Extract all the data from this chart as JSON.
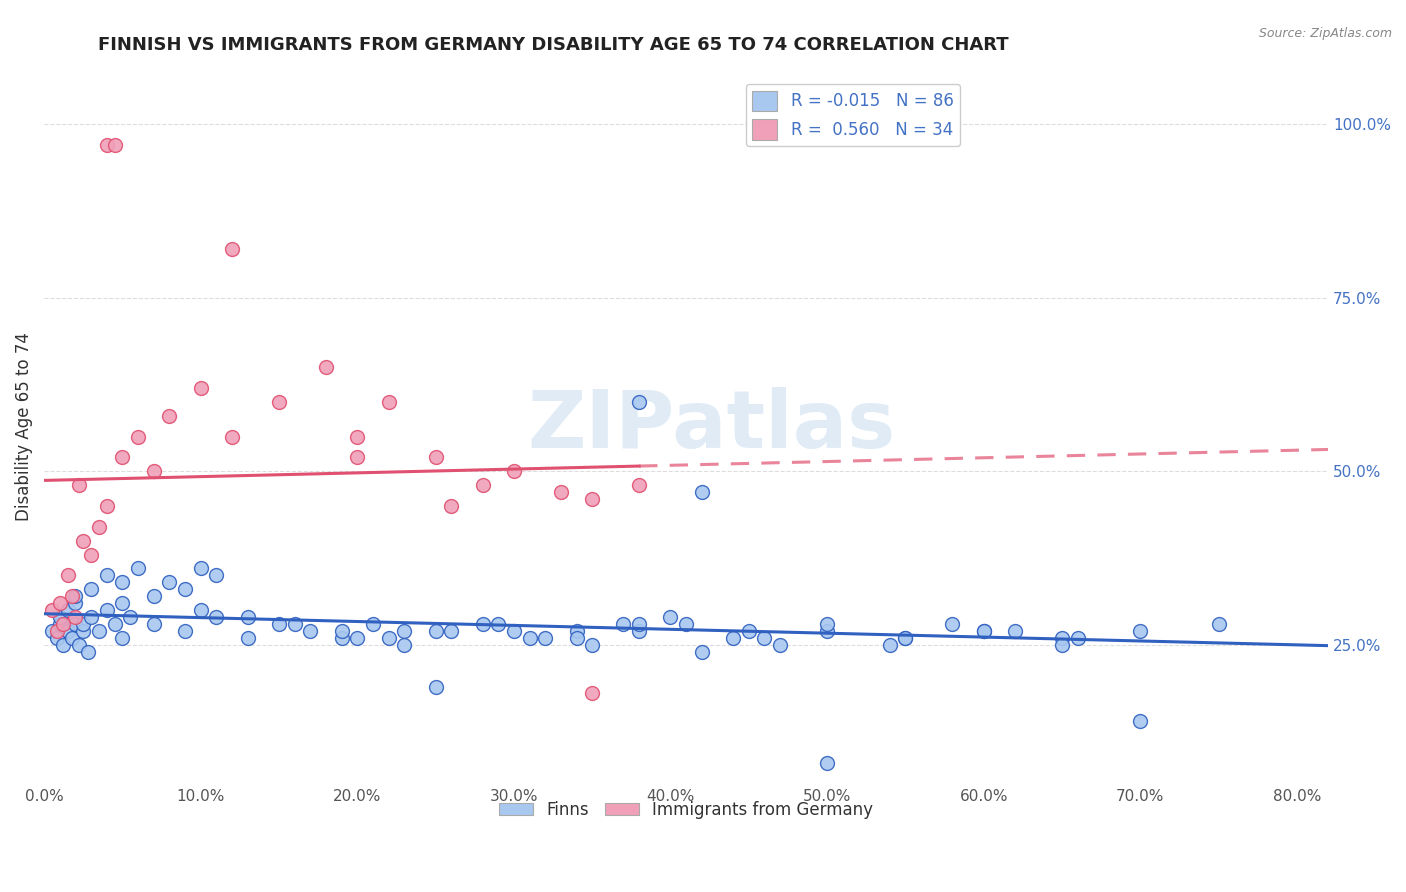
{
  "title": "FINNISH VS IMMIGRANTS FROM GERMANY DISABILITY AGE 65 TO 74 CORRELATION CHART",
  "source": "Source: ZipAtlas.com",
  "ylabel": "Disability Age 65 to 74",
  "xlim": [
    0.0,
    0.82
  ],
  "ylim": [
    0.05,
    1.08
  ],
  "R_finns": -0.015,
  "N_finns": 86,
  "R_germany": 0.56,
  "N_germany": 34,
  "color_finns": "#A8C8F0",
  "color_germany": "#F0A0B8",
  "color_finns_line": "#3060C0",
  "color_germany_line": "#E05070",
  "watermark": "ZIPatlas",
  "watermark_color": "#C8DCF0",
  "finns_x": [
    0.005,
    0.008,
    0.01,
    0.012,
    0.015,
    0.018,
    0.02,
    0.022,
    0.025,
    0.028,
    0.01,
    0.015,
    0.02,
    0.025,
    0.03,
    0.035,
    0.04,
    0.045,
    0.05,
    0.055,
    0.02,
    0.03,
    0.04,
    0.05,
    0.06,
    0.07,
    0.08,
    0.09,
    0.1,
    0.11,
    0.05,
    0.07,
    0.09,
    0.11,
    0.13,
    0.15,
    0.17,
    0.19,
    0.21,
    0.23,
    0.1,
    0.13,
    0.16,
    0.19,
    0.22,
    0.25,
    0.28,
    0.31,
    0.34,
    0.37,
    0.2,
    0.23,
    0.26,
    0.29,
    0.32,
    0.35,
    0.38,
    0.41,
    0.44,
    0.47,
    0.3,
    0.34,
    0.38,
    0.42,
    0.46,
    0.5,
    0.54,
    0.58,
    0.62,
    0.66,
    0.4,
    0.45,
    0.5,
    0.55,
    0.6,
    0.65,
    0.7,
    0.75,
    0.38,
    0.42,
    0.25,
    0.5,
    0.55,
    0.6,
    0.65,
    0.7
  ],
  "finns_y": [
    0.27,
    0.26,
    0.28,
    0.25,
    0.27,
    0.26,
    0.28,
    0.25,
    0.27,
    0.24,
    0.29,
    0.3,
    0.31,
    0.28,
    0.29,
    0.27,
    0.3,
    0.28,
    0.31,
    0.29,
    0.32,
    0.33,
    0.35,
    0.34,
    0.36,
    0.32,
    0.34,
    0.33,
    0.36,
    0.35,
    0.26,
    0.28,
    0.27,
    0.29,
    0.26,
    0.28,
    0.27,
    0.26,
    0.28,
    0.27,
    0.3,
    0.29,
    0.28,
    0.27,
    0.26,
    0.27,
    0.28,
    0.26,
    0.27,
    0.28,
    0.26,
    0.25,
    0.27,
    0.28,
    0.26,
    0.25,
    0.27,
    0.28,
    0.26,
    0.25,
    0.27,
    0.26,
    0.28,
    0.24,
    0.26,
    0.27,
    0.25,
    0.28,
    0.27,
    0.26,
    0.29,
    0.27,
    0.28,
    0.26,
    0.27,
    0.26,
    0.27,
    0.28,
    0.6,
    0.47,
    0.19,
    0.08,
    0.26,
    0.27,
    0.25,
    0.14
  ],
  "germany_x": [
    0.005,
    0.008,
    0.01,
    0.012,
    0.015,
    0.018,
    0.02,
    0.022,
    0.025,
    0.03,
    0.035,
    0.04,
    0.05,
    0.06,
    0.07,
    0.08,
    0.1,
    0.12,
    0.15,
    0.18,
    0.2,
    0.22,
    0.25,
    0.28,
    0.3,
    0.33,
    0.35,
    0.38,
    0.04,
    0.045,
    0.12,
    0.2,
    0.26,
    0.35
  ],
  "germany_y": [
    0.3,
    0.27,
    0.31,
    0.28,
    0.35,
    0.32,
    0.29,
    0.48,
    0.4,
    0.38,
    0.42,
    0.45,
    0.52,
    0.55,
    0.5,
    0.58,
    0.62,
    0.55,
    0.6,
    0.65,
    0.55,
    0.6,
    0.52,
    0.48,
    0.5,
    0.47,
    0.46,
    0.48,
    0.97,
    0.97,
    0.82,
    0.52,
    0.45,
    0.18
  ]
}
